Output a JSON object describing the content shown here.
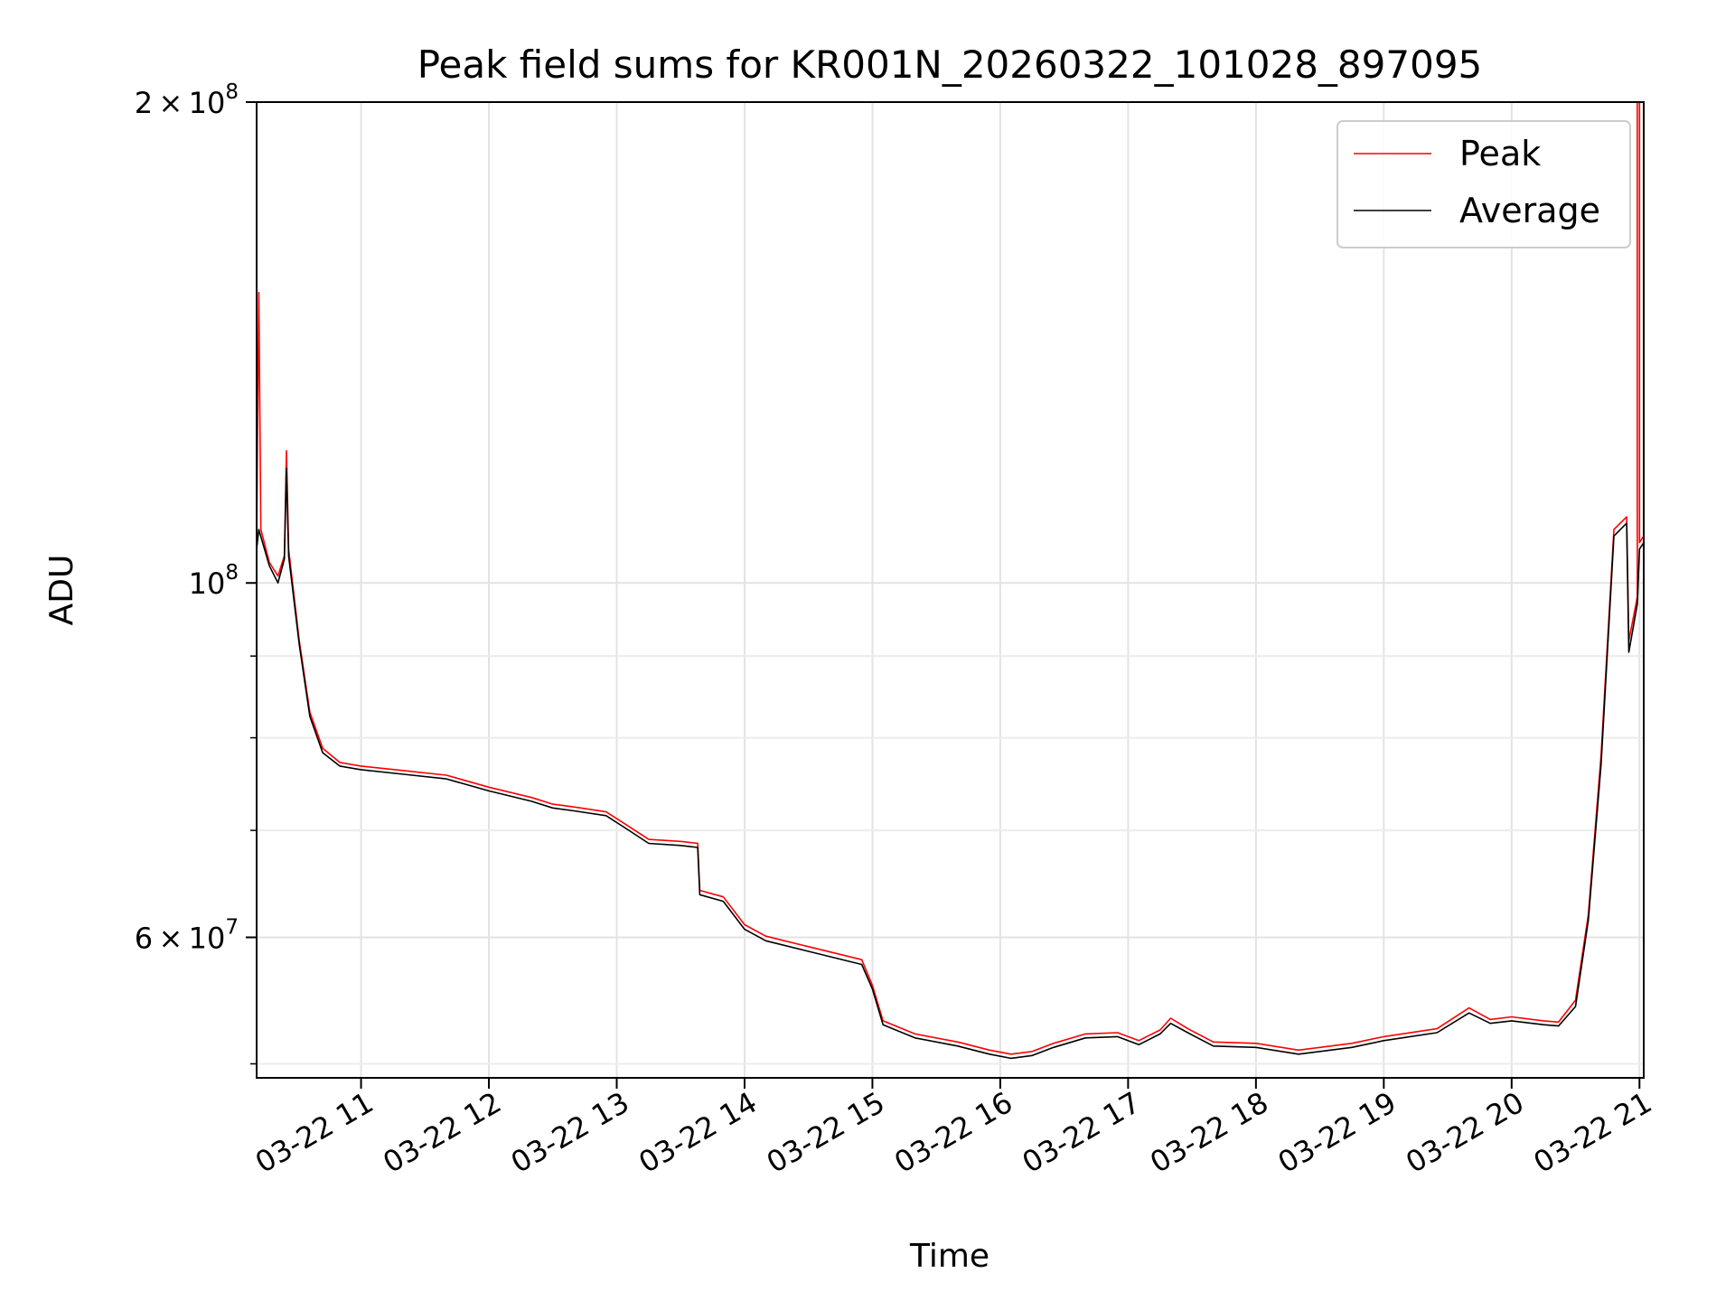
{
  "chart_data": {
    "type": "line",
    "title": "Peak field sums for KR001N_20260322_101028_897095",
    "xlabel": "Time",
    "ylabel": "ADU",
    "yscale": "log",
    "grid": true,
    "legend_position": "top-right",
    "xlim": [
      "2026-03-22 10:11",
      "2026-03-22 21:02"
    ],
    "ylim": [
      49000000,
      200000000
    ],
    "x_ticks": [
      {
        "value": "2026-03-22 11:00",
        "label": "03-22 11"
      },
      {
        "value": "2026-03-22 12:00",
        "label": "03-22 12"
      },
      {
        "value": "2026-03-22 13:00",
        "label": "03-22 13"
      },
      {
        "value": "2026-03-22 14:00",
        "label": "03-22 14"
      },
      {
        "value": "2026-03-22 15:00",
        "label": "03-22 15"
      },
      {
        "value": "2026-03-22 16:00",
        "label": "03-22 16"
      },
      {
        "value": "2026-03-22 17:00",
        "label": "03-22 17"
      },
      {
        "value": "2026-03-22 18:00",
        "label": "03-22 18"
      },
      {
        "value": "2026-03-22 19:00",
        "label": "03-22 19"
      },
      {
        "value": "2026-03-22 20:00",
        "label": "03-22 20"
      },
      {
        "value": "2026-03-22 21:00",
        "label": "03-22 21"
      }
    ],
    "y_major_ticks": [
      {
        "value": 60000000,
        "mantissa": "6",
        "exp": "7"
      },
      {
        "value": 100000000,
        "mantissa": "",
        "exp": "8"
      },
      {
        "value": 200000000,
        "mantissa": "2",
        "exp": "8"
      }
    ],
    "y_minor_ticks": [
      50000000,
      70000000,
      80000000,
      90000000
    ],
    "series": [
      {
        "name": "Peak",
        "color": "#ff0000",
        "points": [
          [
            "2026-03-22 10:11",
            106000000
          ],
          [
            "2026-03-22 10:12",
            152000000
          ],
          [
            "2026-03-22 10:13",
            108000000
          ],
          [
            "2026-03-22 10:17",
            103000000
          ],
          [
            "2026-03-22 10:21",
            101000000
          ],
          [
            "2026-03-22 10:24",
            104000000
          ],
          [
            "2026-03-22 10:25",
            121000000
          ],
          [
            "2026-03-22 10:26",
            105000000
          ],
          [
            "2026-03-22 10:31",
            92000000
          ],
          [
            "2026-03-22 10:36",
            83000000
          ],
          [
            "2026-03-22 10:42",
            78800000
          ],
          [
            "2026-03-22 10:50",
            77200000
          ],
          [
            "2026-03-22 11:00",
            76800000
          ],
          [
            "2026-03-22 11:20",
            76300000
          ],
          [
            "2026-03-22 11:40",
            75800000
          ],
          [
            "2026-03-22 12:00",
            74500000
          ],
          [
            "2026-03-22 12:20",
            73400000
          ],
          [
            "2026-03-22 12:30",
            72700000
          ],
          [
            "2026-03-22 12:40",
            72400000
          ],
          [
            "2026-03-22 12:55",
            71900000
          ],
          [
            "2026-03-22 13:05",
            70500000
          ],
          [
            "2026-03-22 13:15",
            69100000
          ],
          [
            "2026-03-22 13:30",
            68900000
          ],
          [
            "2026-03-22 13:38",
            68700000
          ],
          [
            "2026-03-22 13:39",
            64200000
          ],
          [
            "2026-03-22 13:50",
            63600000
          ],
          [
            "2026-03-22 14:00",
            61100000
          ],
          [
            "2026-03-22 14:10",
            60100000
          ],
          [
            "2026-03-22 14:30",
            59200000
          ],
          [
            "2026-03-22 14:55",
            58100000
          ],
          [
            "2026-03-22 15:00",
            56000000
          ],
          [
            "2026-03-22 15:05",
            53200000
          ],
          [
            "2026-03-22 15:20",
            52200000
          ],
          [
            "2026-03-22 15:40",
            51600000
          ],
          [
            "2026-03-22 15:55",
            51000000
          ],
          [
            "2026-03-22 16:05",
            50700000
          ],
          [
            "2026-03-22 16:15",
            50900000
          ],
          [
            "2026-03-22 16:25",
            51500000
          ],
          [
            "2026-03-22 16:40",
            52200000
          ],
          [
            "2026-03-22 16:55",
            52300000
          ],
          [
            "2026-03-22 17:05",
            51700000
          ],
          [
            "2026-03-22 17:15",
            52500000
          ],
          [
            "2026-03-22 17:20",
            53400000
          ],
          [
            "2026-03-22 17:28",
            52600000
          ],
          [
            "2026-03-22 17:40",
            51600000
          ],
          [
            "2026-03-22 18:00",
            51500000
          ],
          [
            "2026-03-22 18:20",
            51000000
          ],
          [
            "2026-03-22 18:45",
            51500000
          ],
          [
            "2026-03-22 19:00",
            52000000
          ],
          [
            "2026-03-22 19:25",
            52600000
          ],
          [
            "2026-03-22 19:40",
            54200000
          ],
          [
            "2026-03-22 19:50",
            53300000
          ],
          [
            "2026-03-22 20:00",
            53500000
          ],
          [
            "2026-03-22 20:15",
            53200000
          ],
          [
            "2026-03-22 20:22",
            53100000
          ],
          [
            "2026-03-22 20:30",
            54800000
          ],
          [
            "2026-03-22 20:36",
            62000000
          ],
          [
            "2026-03-22 20:42",
            78000000
          ],
          [
            "2026-03-22 20:48",
            108000000
          ],
          [
            "2026-03-22 20:54",
            110000000
          ],
          [
            "2026-03-22 20:55",
            92000000
          ],
          [
            "2026-03-22 20:59",
            98000000
          ],
          [
            "2026-03-22 20:59",
            200000000
          ],
          [
            "2026-03-22 21:00",
            200000000
          ],
          [
            "2026-03-22 21:00",
            106000000
          ],
          [
            "2026-03-22 21:02",
            107000000
          ]
        ]
      },
      {
        "name": "Average",
        "color": "#000000",
        "points": [
          [
            "2026-03-22 10:11",
            105000000
          ],
          [
            "2026-03-22 10:12",
            108000000
          ],
          [
            "2026-03-22 10:17",
            102500000
          ],
          [
            "2026-03-22 10:21",
            100000000
          ],
          [
            "2026-03-22 10:24",
            103500000
          ],
          [
            "2026-03-22 10:25",
            118000000
          ],
          [
            "2026-03-22 10:26",
            104000000
          ],
          [
            "2026-03-22 10:31",
            91500000
          ],
          [
            "2026-03-22 10:36",
            82500000
          ],
          [
            "2026-03-22 10:42",
            78300000
          ],
          [
            "2026-03-22 10:50",
            76800000
          ],
          [
            "2026-03-22 11:00",
            76400000
          ],
          [
            "2026-03-22 11:20",
            75900000
          ],
          [
            "2026-03-22 11:40",
            75400000
          ],
          [
            "2026-03-22 12:00",
            74100000
          ],
          [
            "2026-03-22 12:20",
            73000000
          ],
          [
            "2026-03-22 12:30",
            72300000
          ],
          [
            "2026-03-22 12:40",
            72000000
          ],
          [
            "2026-03-22 12:55",
            71500000
          ],
          [
            "2026-03-22 13:05",
            70100000
          ],
          [
            "2026-03-22 13:15",
            68700000
          ],
          [
            "2026-03-22 13:30",
            68500000
          ],
          [
            "2026-03-22 13:38",
            68300000
          ],
          [
            "2026-03-22 13:39",
            63800000
          ],
          [
            "2026-03-22 13:50",
            63200000
          ],
          [
            "2026-03-22 14:00",
            60700000
          ],
          [
            "2026-03-22 14:10",
            59700000
          ],
          [
            "2026-03-22 14:30",
            58800000
          ],
          [
            "2026-03-22 14:55",
            57700000
          ],
          [
            "2026-03-22 15:00",
            55700000
          ],
          [
            "2026-03-22 15:05",
            52900000
          ],
          [
            "2026-03-22 15:20",
            51900000
          ],
          [
            "2026-03-22 15:40",
            51300000
          ],
          [
            "2026-03-22 15:55",
            50700000
          ],
          [
            "2026-03-22 16:05",
            50400000
          ],
          [
            "2026-03-22 16:15",
            50600000
          ],
          [
            "2026-03-22 16:25",
            51200000
          ],
          [
            "2026-03-22 16:40",
            51900000
          ],
          [
            "2026-03-22 16:55",
            52000000
          ],
          [
            "2026-03-22 17:05",
            51400000
          ],
          [
            "2026-03-22 17:15",
            52200000
          ],
          [
            "2026-03-22 17:20",
            53000000
          ],
          [
            "2026-03-22 17:28",
            52300000
          ],
          [
            "2026-03-22 17:40",
            51300000
          ],
          [
            "2026-03-22 18:00",
            51200000
          ],
          [
            "2026-03-22 18:20",
            50700000
          ],
          [
            "2026-03-22 18:45",
            51200000
          ],
          [
            "2026-03-22 19:00",
            51700000
          ],
          [
            "2026-03-22 19:25",
            52300000
          ],
          [
            "2026-03-22 19:40",
            53800000
          ],
          [
            "2026-03-22 19:50",
            53000000
          ],
          [
            "2026-03-22 20:00",
            53200000
          ],
          [
            "2026-03-22 20:15",
            52900000
          ],
          [
            "2026-03-22 20:22",
            52800000
          ],
          [
            "2026-03-22 20:30",
            54300000
          ],
          [
            "2026-03-22 20:36",
            61500000
          ],
          [
            "2026-03-22 20:42",
            77000000
          ],
          [
            "2026-03-22 20:48",
            107000000
          ],
          [
            "2026-03-22 20:54",
            109000000
          ],
          [
            "2026-03-22 20:55",
            90500000
          ],
          [
            "2026-03-22 20:59",
            97000000
          ],
          [
            "2026-03-22 21:00",
            105000000
          ],
          [
            "2026-03-22 21:02",
            106000000
          ]
        ]
      }
    ]
  }
}
